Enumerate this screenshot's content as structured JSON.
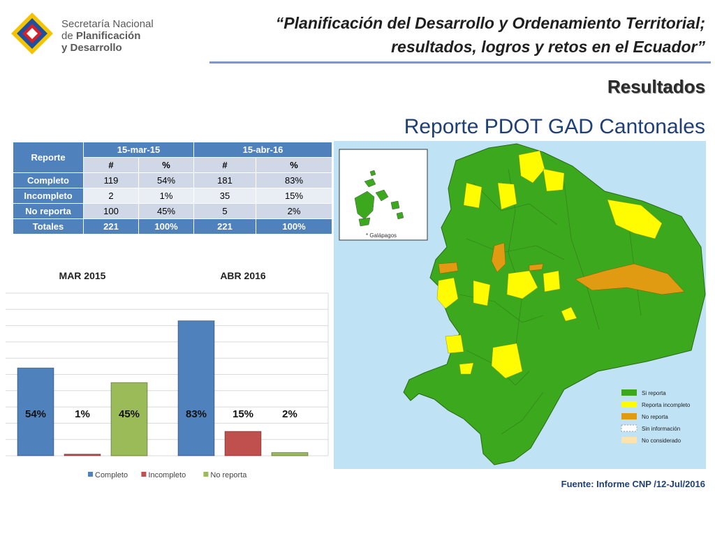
{
  "logo": {
    "line1": "Secretaría Nacional",
    "line2_prefix": "de ",
    "line2_bold": "Planificación",
    "line3": "y Desarrollo"
  },
  "header": {
    "title_line1": "“Planificación del Desarrollo y Ordenamiento Territorial;",
    "title_line2": "resultados, logros y retos en el Ecuador”",
    "section": "Resultados",
    "report_title": "Reporte PDOT GAD Cantonales"
  },
  "table": {
    "row_header": "Reporte",
    "periods": [
      "15-mar-15",
      "15-abr-16"
    ],
    "subheaders": [
      "#",
      "%",
      "#",
      "%"
    ],
    "rows": [
      {
        "label": "Completo",
        "cells": [
          "119",
          "54%",
          "181",
          "83%"
        ]
      },
      {
        "label": "Incompleto",
        "cells": [
          "2",
          "1%",
          "35",
          "15%"
        ]
      },
      {
        "label": "No reporta",
        "cells": [
          "100",
          "45%",
          "5",
          "2%"
        ]
      },
      {
        "label": "Totales",
        "cells": [
          "221",
          "100%",
          "221",
          "100%"
        ]
      }
    ]
  },
  "chart_data": {
    "type": "bar",
    "groups": [
      "MAR 2015",
      "ABR 2016"
    ],
    "series": [
      {
        "name": "Completo",
        "values": [
          54,
          83
        ],
        "labels": [
          "54%",
          "83%"
        ],
        "color": "#4f81bd"
      },
      {
        "name": "Incompleto",
        "values": [
          1,
          15
        ],
        "labels": [
          "1%",
          "15%"
        ],
        "color": "#c0504d"
      },
      {
        "name": "No reporta",
        "values": [
          45,
          2
        ],
        "labels": [
          "45%",
          "2%"
        ],
        "color": "#9bbb59"
      }
    ],
    "ylim": [
      0,
      100
    ],
    "grid": true,
    "legend": "bottom"
  },
  "map": {
    "inset_label": "* Galápagos",
    "colors": {
      "si_reporta": "#3ca81e",
      "reporta_incompleto": "#fffb00",
      "no_reporta": "#e19b12",
      "sin_informacion": "#ffffff",
      "no_considerado": "#f9e4b0",
      "sea": "#bfe3f5"
    },
    "legend": [
      "Si reporta",
      "Reporta incompleto",
      "No reporta",
      "Sin información",
      "No considerado"
    ]
  },
  "source": "Fuente: Informe CNP /12-Jul/2016"
}
